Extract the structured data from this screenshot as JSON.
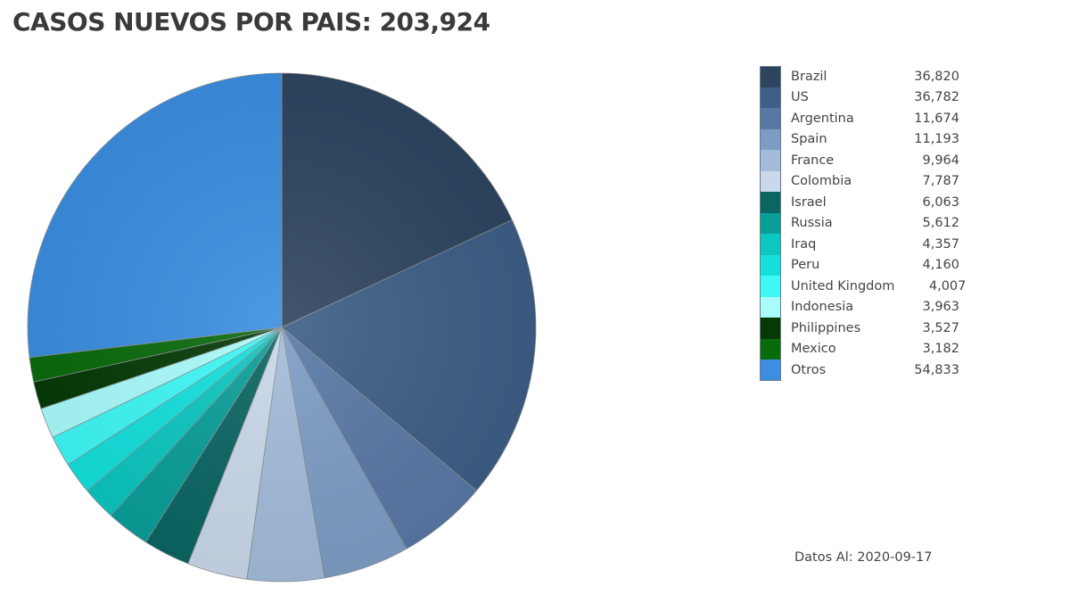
{
  "title": "CASOS NUEVOS POR PAIS: 203,924",
  "footnote": {
    "label": "Datos Al:",
    "date": "2020-09-17"
  },
  "chart_data": {
    "type": "pie",
    "title": "CASOS NUEVOS POR PAIS: 203,924",
    "total": 203924,
    "start_angle_deg": 0,
    "direction": "clockwise",
    "legend_position": "right",
    "slices": [
      {
        "label": "Brazil",
        "value": 36820,
        "value_label": "36,820",
        "color": "#2e4560"
      },
      {
        "label": "US",
        "value": 36782,
        "value_label": "36,782",
        "color": "#3d5e85"
      },
      {
        "label": "Argentina",
        "value": 11674,
        "value_label": "11,674",
        "color": "#5878a4"
      },
      {
        "label": "Spain",
        "value": 11193,
        "value_label": "11,193",
        "color": "#7d9cc4"
      },
      {
        "label": "France",
        "value": 9964,
        "value_label": "9,964",
        "color": "#a3bcda"
      },
      {
        "label": "Colombia",
        "value": 7787,
        "value_label": "7,787",
        "color": "#c9d8ea"
      },
      {
        "label": "Israel",
        "value": 6063,
        "value_label": "6,063",
        "color": "#0b6562"
      },
      {
        "label": "Russia",
        "value": 5612,
        "value_label": "5,612",
        "color": "#0a9e99"
      },
      {
        "label": "Iraq",
        "value": 4357,
        "value_label": "4,357",
        "color": "#0cc6c0"
      },
      {
        "label": "Peru",
        "value": 4160,
        "value_label": "4,160",
        "color": "#14e0dc"
      },
      {
        "label": "United Kingdom",
        "value": 4007,
        "value_label": "4,007",
        "color": "#3ef8f6"
      },
      {
        "label": "Indonesia",
        "value": 3963,
        "value_label": "3,963",
        "color": "#a8fcfb"
      },
      {
        "label": "Philippines",
        "value": 3527,
        "value_label": "3,527",
        "color": "#053a06"
      },
      {
        "label": "Mexico",
        "value": 3182,
        "value_label": "3,182",
        "color": "#0a6b0c"
      },
      {
        "label": "Otros",
        "value": 54833,
        "value_label": "54,833",
        "color": "#3b8ee0"
      }
    ]
  }
}
